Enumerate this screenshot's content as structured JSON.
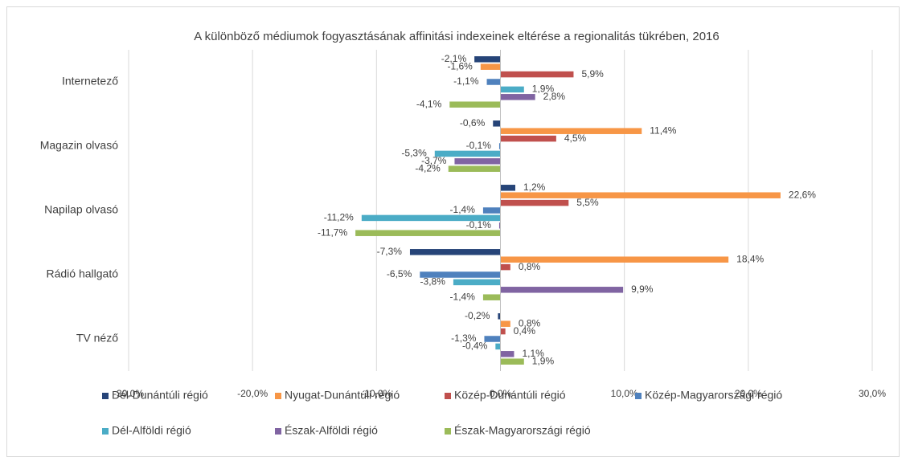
{
  "chart_data": {
    "type": "hbar",
    "title": "A különböző médiumok fogyasztásának affinitási indexeinek eltérése a regionalitás tükrében, 2016",
    "categories": [
      "Internetező",
      "Magazin olvasó",
      "Napilap olvasó",
      "Rádió hallgató",
      "TV néző"
    ],
    "series": [
      {
        "name": "Dél-Dunántúli régió",
        "color": "#264478",
        "values": [
          -2.1,
          -0.6,
          1.2,
          -7.3,
          -0.2
        ],
        "value_labels": [
          "-2,1%",
          "-0,6%",
          "1,2%",
          "-7,3%",
          "-0,2%"
        ]
      },
      {
        "name": "Nyugat-Dunántúli régió",
        "color": "#f79646",
        "values": [
          -1.6,
          11.4,
          22.6,
          18.4,
          0.8
        ],
        "value_labels": [
          "-1,6%",
          "11,4%",
          "22,6%",
          "18,4%",
          "0,8%"
        ]
      },
      {
        "name": "Közép-Dunántúli régió",
        "color": "#c0504d",
        "values": [
          5.9,
          4.5,
          5.5,
          0.8,
          0.4
        ],
        "value_labels": [
          "5,9%",
          "4,5%",
          "5,5%",
          "0,8%",
          "0,4%"
        ]
      },
      {
        "name": "Közép-Magyarországi régió",
        "color": "#4f81bd",
        "values": [
          -1.1,
          -0.1,
          -1.4,
          -6.5,
          -1.3
        ],
        "value_labels": [
          "-1,1%",
          "-0,1%",
          "-1,4%",
          "-6,5%",
          "-1,3%"
        ]
      },
      {
        "name": "Dél-Alföldi régió",
        "color": "#4bacc6",
        "values": [
          1.9,
          -5.3,
          -11.2,
          -3.8,
          -0.4
        ],
        "value_labels": [
          "1,9%",
          "-5,3%",
          "-11,2%",
          "-3,8%",
          "-0,4%"
        ]
      },
      {
        "name": "Észak-Alföldi régió",
        "color": "#8064a2",
        "values": [
          2.8,
          -3.7,
          -0.1,
          9.9,
          1.1
        ],
        "value_labels": [
          "2,8%",
          "-3,7%",
          "-0,1%",
          "9,9%",
          "1,1%"
        ]
      },
      {
        "name": "Észak-Magyarországi régió",
        "color": "#9bbb59",
        "values": [
          -4.1,
          -4.2,
          -11.7,
          -1.4,
          1.9
        ],
        "value_labels": [
          "-4,1%",
          "-4,2%",
          "-11,7%",
          "-1,4%",
          "1,9%"
        ]
      }
    ],
    "xlim": [
      -30,
      30
    ],
    "xticks": [
      {
        "value": -30,
        "label": "-30,0%"
      },
      {
        "value": -20,
        "label": "-20,0%"
      },
      {
        "value": -10,
        "label": "-10,0%"
      },
      {
        "value": 0,
        "label": "0,0%"
      },
      {
        "value": 10,
        "label": "10,0%"
      },
      {
        "value": 20,
        "label": "20,0%"
      },
      {
        "value": 30,
        "label": "30,0%"
      }
    ],
    "grid": true
  }
}
